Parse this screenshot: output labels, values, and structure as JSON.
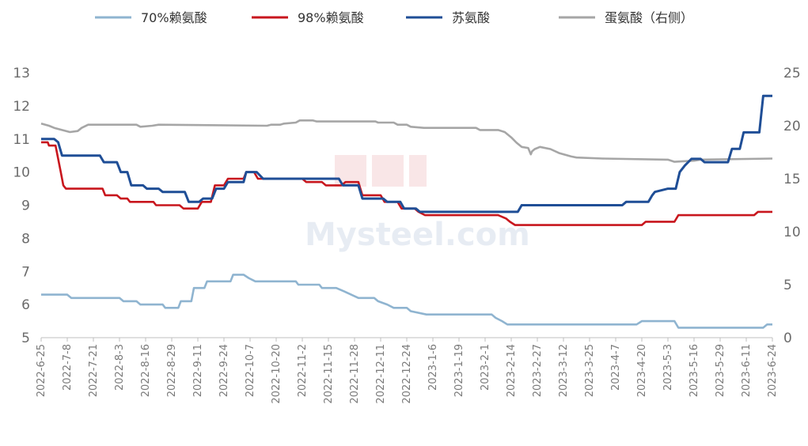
{
  "chart_data": {
    "type": "line",
    "title": "",
    "legend_position": "top",
    "grid": false,
    "x_labels": [
      "2022-6-25",
      "2022-7-8",
      "2022-7-21",
      "2022-8-3",
      "2022-8-16",
      "2022-8-29",
      "2022-9-11",
      "2022-9-24",
      "2022-10-7",
      "2022-10-20",
      "2022-11-2",
      "2022-11-15",
      "2022-11-28",
      "2022-12-11",
      "2022-12-24",
      "2023-1-6",
      "2023-1-19",
      "2023-2-1",
      "2023-2-14",
      "2023-2-27",
      "2023-3-12",
      "2023-3-25",
      "2023-4-7",
      "2023-4-20",
      "2023-5-3",
      "2023-5-16",
      "2023-5-29",
      "2023-6-11",
      "2023-6-24"
    ],
    "left_axis": {
      "ylim": [
        5,
        13
      ],
      "ticks": [
        "5",
        "6",
        "7",
        "8",
        "9",
        "10",
        "11",
        "12",
        "13"
      ]
    },
    "right_axis": {
      "ylim": [
        0,
        25
      ],
      "ticks": [
        "0",
        "5",
        "10",
        "15",
        "20",
        "25"
      ]
    },
    "series": [
      {
        "name": "70%赖氨酸",
        "color": "#8fb4d0",
        "axis": "left",
        "points": [
          [
            0,
            6.3
          ],
          [
            2,
            6.3
          ],
          [
            2.3,
            6.2
          ],
          [
            6,
            6.2
          ],
          [
            6.3,
            6.1
          ],
          [
            7.3,
            6.1
          ],
          [
            7.6,
            6.0
          ],
          [
            9.3,
            6.0
          ],
          [
            9.5,
            5.9
          ],
          [
            10.5,
            5.9
          ],
          [
            10.7,
            6.1
          ],
          [
            11.5,
            6.1
          ],
          [
            11.7,
            6.5
          ],
          [
            12.5,
            6.5
          ],
          [
            12.7,
            6.7
          ],
          [
            14.5,
            6.7
          ],
          [
            14.7,
            6.9
          ],
          [
            15.5,
            6.9
          ],
          [
            15.9,
            6.8
          ],
          [
            16.4,
            6.7
          ],
          [
            19.5,
            6.7
          ],
          [
            19.7,
            6.6
          ],
          [
            21.3,
            6.6
          ],
          [
            21.5,
            6.5
          ],
          [
            22.6,
            6.5
          ],
          [
            23.2,
            6.4
          ],
          [
            24.3,
            6.2
          ],
          [
            25.5,
            6.2
          ],
          [
            25.8,
            6.1
          ],
          [
            26.5,
            6.0
          ],
          [
            27,
            5.9
          ],
          [
            28,
            5.9
          ],
          [
            28.3,
            5.8
          ],
          [
            29.5,
            5.7
          ],
          [
            34.5,
            5.7
          ],
          [
            34.8,
            5.6
          ],
          [
            35.3,
            5.5
          ],
          [
            35.7,
            5.4
          ],
          [
            45.6,
            5.4
          ],
          [
            46,
            5.5
          ],
          [
            48.5,
            5.5
          ],
          [
            48.8,
            5.3
          ],
          [
            55.3,
            5.3
          ],
          [
            55.6,
            5.4
          ],
          [
            56,
            5.4
          ]
        ]
      },
      {
        "name": "98%赖氨酸",
        "color": "#c8161d",
        "axis": "left",
        "points": [
          [
            0,
            10.9
          ],
          [
            0.5,
            10.9
          ],
          [
            0.6,
            10.8
          ],
          [
            1.1,
            10.8
          ],
          [
            1.3,
            10.4
          ],
          [
            1.5,
            10.0
          ],
          [
            1.7,
            9.6
          ],
          [
            1.9,
            9.5
          ],
          [
            4.7,
            9.5
          ],
          [
            4.9,
            9.3
          ],
          [
            5.8,
            9.3
          ],
          [
            6.1,
            9.2
          ],
          [
            6.6,
            9.2
          ],
          [
            6.8,
            9.1
          ],
          [
            8.6,
            9.1
          ],
          [
            8.8,
            9.0
          ],
          [
            10.6,
            9.0
          ],
          [
            10.9,
            8.9
          ],
          [
            12,
            8.9
          ],
          [
            12.3,
            9.1
          ],
          [
            13,
            9.1
          ],
          [
            13.3,
            9.6
          ],
          [
            14,
            9.6
          ],
          [
            14.3,
            9.8
          ],
          [
            15.5,
            9.8
          ],
          [
            15.7,
            10.0
          ],
          [
            16.3,
            10.0
          ],
          [
            16.6,
            9.8
          ],
          [
            20,
            9.8
          ],
          [
            20.3,
            9.7
          ],
          [
            21.5,
            9.7
          ],
          [
            21.8,
            9.6
          ],
          [
            23,
            9.6
          ],
          [
            23.3,
            9.7
          ],
          [
            24.3,
            9.7
          ],
          [
            24.6,
            9.3
          ],
          [
            26,
            9.3
          ],
          [
            26.3,
            9.1
          ],
          [
            27.3,
            9.1
          ],
          [
            27.6,
            8.9
          ],
          [
            28.6,
            8.9
          ],
          [
            28.9,
            8.8
          ],
          [
            29.4,
            8.7
          ],
          [
            35,
            8.7
          ],
          [
            35.6,
            8.6
          ],
          [
            35.9,
            8.5
          ],
          [
            36.3,
            8.4
          ],
          [
            46,
            8.4
          ],
          [
            46.3,
            8.5
          ],
          [
            48.5,
            8.5
          ],
          [
            48.8,
            8.7
          ],
          [
            54.6,
            8.7
          ],
          [
            54.9,
            8.8
          ],
          [
            56,
            8.8
          ]
        ]
      },
      {
        "name": "苏氨酸",
        "color": "#1f4e96",
        "axis": "left",
        "points": [
          [
            0,
            11.0
          ],
          [
            1,
            11.0
          ],
          [
            1.3,
            10.9
          ],
          [
            1.6,
            10.5
          ],
          [
            4.5,
            10.5
          ],
          [
            4.8,
            10.3
          ],
          [
            5.8,
            10.3
          ],
          [
            6.1,
            10.0
          ],
          [
            6.6,
            10.0
          ],
          [
            6.9,
            9.6
          ],
          [
            7.8,
            9.6
          ],
          [
            8.1,
            9.5
          ],
          [
            9,
            9.5
          ],
          [
            9.3,
            9.4
          ],
          [
            11,
            9.4
          ],
          [
            11.3,
            9.1
          ],
          [
            12.1,
            9.1
          ],
          [
            12.4,
            9.2
          ],
          [
            13.1,
            9.2
          ],
          [
            13.4,
            9.5
          ],
          [
            14,
            9.5
          ],
          [
            14.3,
            9.7
          ],
          [
            15.5,
            9.7
          ],
          [
            15.7,
            10.0
          ],
          [
            16.5,
            10.0
          ],
          [
            17,
            9.8
          ],
          [
            22.8,
            9.8
          ],
          [
            23.1,
            9.6
          ],
          [
            24.3,
            9.6
          ],
          [
            24.6,
            9.2
          ],
          [
            26.2,
            9.2
          ],
          [
            26.5,
            9.1
          ],
          [
            27.5,
            9.1
          ],
          [
            27.8,
            8.9
          ],
          [
            28.7,
            8.9
          ],
          [
            29,
            8.8
          ],
          [
            36.5,
            8.8
          ],
          [
            36.8,
            9.0
          ],
          [
            44.5,
            9.0
          ],
          [
            44.8,
            9.1
          ],
          [
            46.5,
            9.1
          ],
          [
            46.8,
            9.3
          ],
          [
            47,
            9.4
          ],
          [
            48,
            9.5
          ],
          [
            48.6,
            9.5
          ],
          [
            48.9,
            10.0
          ],
          [
            49.3,
            10.2
          ],
          [
            49.8,
            10.4
          ],
          [
            50.5,
            10.4
          ],
          [
            50.8,
            10.3
          ],
          [
            52.6,
            10.3
          ],
          [
            52.9,
            10.7
          ],
          [
            53.5,
            10.7
          ],
          [
            53.8,
            11.2
          ],
          [
            55,
            11.2
          ],
          [
            55.3,
            12.3
          ],
          [
            56,
            12.3
          ]
        ]
      },
      {
        "name": "蛋氨酸（右侧）",
        "color": "#a6a6a6",
        "axis": "right",
        "points": [
          [
            0,
            20.2
          ],
          [
            0.6,
            20.0
          ],
          [
            1,
            19.8
          ],
          [
            2.2,
            19.4
          ],
          [
            2.8,
            19.5
          ],
          [
            3.1,
            19.8
          ],
          [
            3.6,
            20.1
          ],
          [
            7.3,
            20.1
          ],
          [
            7.6,
            19.9
          ],
          [
            8.5,
            20.0
          ],
          [
            9,
            20.1
          ],
          [
            17.3,
            20.0
          ],
          [
            17.6,
            20.1
          ],
          [
            18.3,
            20.1
          ],
          [
            18.6,
            20.2
          ],
          [
            19.5,
            20.3
          ],
          [
            19.8,
            20.5
          ],
          [
            20.8,
            20.5
          ],
          [
            21.1,
            20.4
          ],
          [
            25.6,
            20.4
          ],
          [
            25.8,
            20.3
          ],
          [
            27,
            20.3
          ],
          [
            27.3,
            20.1
          ],
          [
            28,
            20.1
          ],
          [
            28.3,
            19.9
          ],
          [
            29.3,
            19.8
          ],
          [
            33.3,
            19.8
          ],
          [
            33.6,
            19.6
          ],
          [
            35,
            19.6
          ],
          [
            35.5,
            19.4
          ],
          [
            36,
            18.9
          ],
          [
            36.4,
            18.4
          ],
          [
            36.8,
            18.0
          ],
          [
            37.3,
            17.9
          ],
          [
            37.5,
            17.3
          ],
          [
            37.6,
            17.6
          ],
          [
            37.8,
            17.8
          ],
          [
            38.2,
            18.0
          ],
          [
            39,
            17.8
          ],
          [
            39.7,
            17.4
          ],
          [
            40.6,
            17.1
          ],
          [
            41,
            17.0
          ],
          [
            43,
            16.9
          ],
          [
            48,
            16.8
          ],
          [
            48.5,
            16.6
          ],
          [
            50,
            16.7
          ],
          [
            50.5,
            16.8
          ],
          [
            56,
            16.9
          ]
        ]
      }
    ]
  },
  "watermark": "Mysteel.com"
}
